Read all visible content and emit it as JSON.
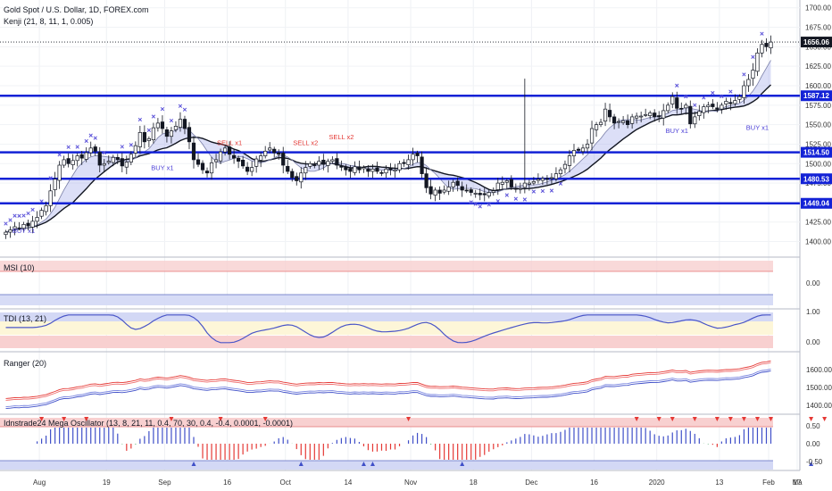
{
  "header": {
    "title": "Gold Spot / U.S. Dollar, 1D, FOREX.com",
    "study": "Kenji (21, 8, 11, 1, 0.005)"
  },
  "colors": {
    "up": "#ffffff",
    "down": "#131722",
    "level": "#1322d6",
    "signal_red": "#e53935",
    "signal_blue": "#4b3fd6",
    "cross": "#5b52d9"
  },
  "chart_data": [
    {
      "type": "candlestick",
      "title": "Gold Spot / U.S. Dollar, 1D, FOREX.com",
      "ylim": [
        1380,
        1710
      ],
      "yticks": [
        1400,
        1425,
        1450,
        1475,
        1500,
        1525,
        1550,
        1575,
        1600,
        1625,
        1650,
        1675,
        1700
      ],
      "xticks": [
        "Aug",
        "19",
        "Sep",
        "16",
        "Oct",
        "14",
        "Nov",
        "18",
        "Dec",
        "16",
        "2020",
        "13",
        "Feb",
        "17",
        "Ma"
      ],
      "last_price": "1656.06",
      "levels": [
        {
          "value": 1587.12,
          "label": "1587.12"
        },
        {
          "value": 1514.5,
          "label": "1514.50"
        },
        {
          "value": 1480.53,
          "label": "1480.53"
        },
        {
          "value": 1449.04,
          "label": "1449.04"
        }
      ],
      "close": [
        1412,
        1415,
        1419,
        1417,
        1422,
        1420,
        1426,
        1431,
        1440,
        1446,
        1465,
        1480,
        1498,
        1505,
        1500,
        1504,
        1510,
        1507,
        1514,
        1520,
        1516,
        1498,
        1500,
        1503,
        1508,
        1505,
        1497,
        1502,
        1512,
        1523,
        1540,
        1528,
        1532,
        1546,
        1552,
        1545,
        1535,
        1542,
        1548,
        1557,
        1545,
        1528,
        1505,
        1499,
        1492,
        1488,
        1501,
        1505,
        1515,
        1520,
        1512,
        1507,
        1503,
        1497,
        1490,
        1495,
        1506,
        1510,
        1516,
        1520,
        1514,
        1512,
        1498,
        1490,
        1482,
        1478,
        1488,
        1495,
        1500,
        1498,
        1503,
        1499,
        1503,
        1505,
        1498,
        1496,
        1492,
        1490,
        1496,
        1492,
        1495,
        1490,
        1493,
        1490,
        1488,
        1493,
        1492,
        1492,
        1500,
        1500,
        1505,
        1512,
        1510,
        1487,
        1469,
        1461,
        1466,
        1462,
        1466,
        1470,
        1476,
        1472,
        1466,
        1465,
        1463,
        1462,
        1460,
        1460,
        1463,
        1465,
        1475,
        1476,
        1478,
        1470,
        1467,
        1468,
        1475,
        1475,
        1477,
        1480,
        1481,
        1480,
        1482,
        1487,
        1492,
        1499,
        1510,
        1517,
        1517,
        1520,
        1525,
        1545,
        1550,
        1553,
        1570,
        1560,
        1552,
        1554,
        1555,
        1550,
        1560,
        1561,
        1561,
        1563,
        1565,
        1560,
        1560,
        1568,
        1575,
        1586,
        1571,
        1570,
        1575,
        1551,
        1560,
        1567,
        1573,
        1575,
        1573,
        1570,
        1575,
        1580,
        1577,
        1581,
        1586,
        1600,
        1608,
        1620,
        1642,
        1653,
        1650,
        1656
      ],
      "events": {
        "sell": [
          "SELL x1",
          "SELL x2",
          "SELL x2"
        ],
        "buy": [
          "BUY x1",
          "BUY x1",
          "BUY x1",
          "BUY x1"
        ]
      }
    },
    {
      "type": "line",
      "title": "MSI (10)",
      "ylim": [
        -0.4,
        1.15
      ],
      "yticks": [
        0.0
      ]
    },
    {
      "type": "line",
      "title": "TDI (13, 21)",
      "ylim": [
        -0.25,
        1.1
      ],
      "yticks": [
        0.0,
        1.0
      ],
      "tick_labels": [
        "0.00",
        "1.00"
      ]
    },
    {
      "type": "line",
      "title": "Ranger (20)",
      "ylim": [
        1360,
        1690
      ],
      "yticks": [
        1400,
        1500,
        1600
      ]
    },
    {
      "type": "bar",
      "title": "Idnstrade24 Mega Oscillator (13, 8, 21, 11, 0.4, 70, 30, 0.4, -0.4, 0.0001, -0.0001)",
      "ylim": [
        -0.6,
        0.6
      ],
      "yticks": [
        0.5,
        0.0,
        -0.5
      ],
      "tick_labels": [
        "0.50",
        "0.00",
        "-0.50"
      ]
    }
  ]
}
